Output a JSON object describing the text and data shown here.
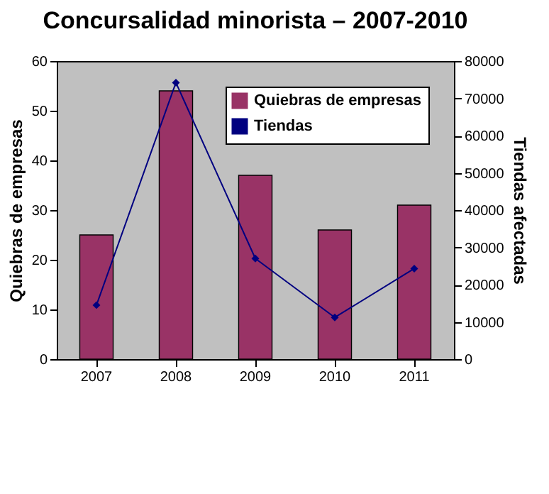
{
  "chart_data": {
    "type": "bar",
    "title": "Concursalidad minorista – 2007-2010",
    "ylabel": "Quiebras de empresas",
    "y2label": "Tiendas afectadas",
    "categories": [
      "2007",
      "2008",
      "2009",
      "2010",
      "2011"
    ],
    "series": [
      {
        "name": "Quiebras de empresas",
        "color": "#993366",
        "values": [
          25,
          54,
          37,
          26,
          31
        ]
      },
      {
        "name": "Tiendas",
        "type": "line",
        "axis": "y2",
        "color": "#000080",
        "marker": "diamond",
        "line_style": "solid",
        "values": [
          14500,
          74200,
          27000,
          11200,
          24300
        ]
      }
    ],
    "ylim": [
      0,
      60
    ],
    "yticks": [
      0,
      10,
      20,
      30,
      40,
      50,
      60
    ],
    "y2lim": [
      0,
      80000
    ],
    "y2ticks": [
      0,
      10000,
      20000,
      30000,
      40000,
      50000,
      60000,
      70000,
      80000
    ],
    "grid": false,
    "legend": "top right"
  }
}
